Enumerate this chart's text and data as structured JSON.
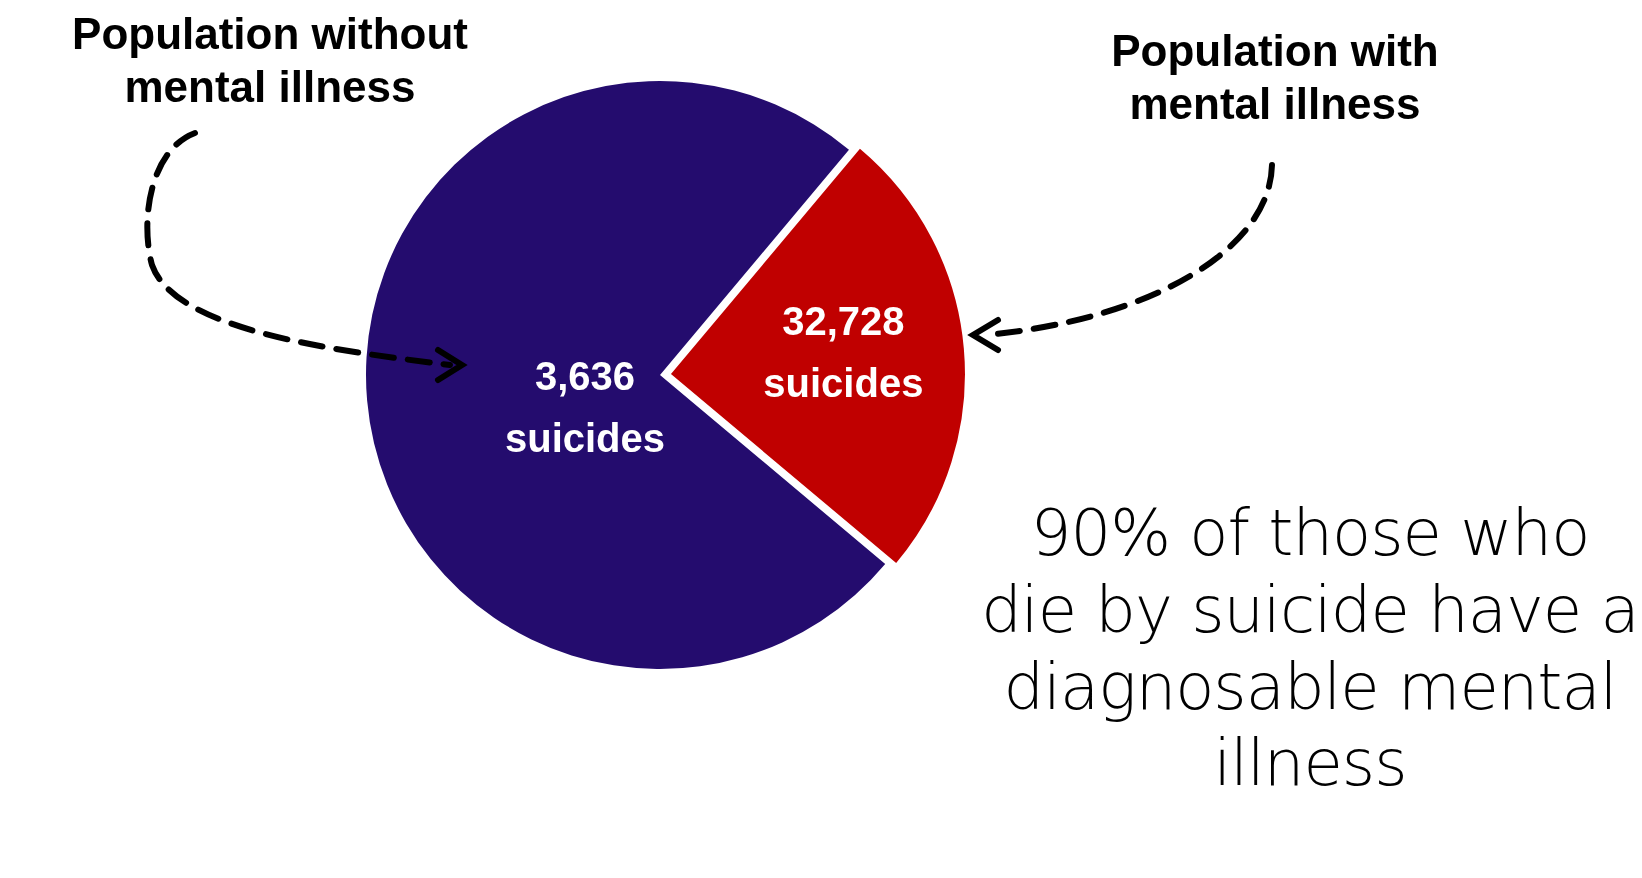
{
  "chart_data": {
    "type": "pie",
    "categories": [
      "Population without mental illness",
      "Population with mental illness"
    ],
    "values": [
      75,
      25
    ],
    "colors": [
      "#240c6e",
      "#c00000"
    ],
    "annotations": [
      "3,636 suicides",
      "32,728 suicides",
      "90% of those who die by suicide have a diagnosable mental illness"
    ],
    "legend": false
  }
}
